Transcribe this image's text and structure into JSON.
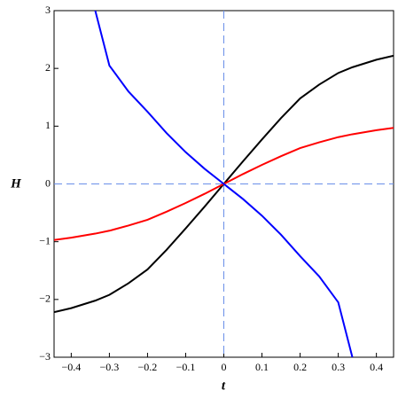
{
  "chart_data": {
    "type": "line",
    "x_label": "t",
    "y_label": "H",
    "x": [
      -0.445,
      -0.4,
      -0.337,
      -0.3,
      -0.25,
      -0.2,
      -0.15,
      -0.1,
      -0.05,
      0,
      0.05,
      0.1,
      0.15,
      0.2,
      0.25,
      0.3,
      0.337,
      0.4,
      0.445
    ],
    "series": [
      {
        "color": "#000000",
        "values": [
          -2.22,
          -2.15,
          -2.02,
          -1.92,
          -1.72,
          -1.48,
          -1.14,
          -0.77,
          -0.39,
          0,
          0.39,
          0.77,
          1.14,
          1.48,
          1.72,
          1.92,
          2.02,
          2.15,
          2.22
        ]
      },
      {
        "color": "#ff0000",
        "values": [
          -0.97,
          -0.93,
          -0.86,
          -0.81,
          -0.72,
          -0.62,
          -0.48,
          -0.33,
          -0.17,
          0,
          0.17,
          0.33,
          0.48,
          0.62,
          0.72,
          0.81,
          0.86,
          0.93,
          0.97
        ]
      },
      {
        "color": "#0000ff",
        "values": [
          null,
          null,
          3,
          2.05,
          1.6,
          1.25,
          0.88,
          0.55,
          0.26,
          0,
          -0.26,
          -0.55,
          -0.88,
          -1.25,
          -1.6,
          -2.05,
          -3,
          null,
          null
        ]
      }
    ],
    "xlim": [
      -0.445,
      0.445
    ],
    "ylim": [
      -3,
      3
    ],
    "xticks": [
      {
        "value": -0.4,
        "label": "−0.4"
      },
      {
        "value": -0.3,
        "label": "−0.3"
      },
      {
        "value": -0.2,
        "label": "−0.2"
      },
      {
        "value": -0.1,
        "label": "−0.1"
      },
      0,
      0.1,
      0.2,
      0.3,
      0.4
    ],
    "yticks": [
      {
        "value": -3,
        "label": "−3"
      },
      {
        "value": -2,
        "label": "−2"
      },
      {
        "value": -1,
        "label": "−1"
      },
      0,
      1,
      2,
      3
    ],
    "zero_lines_color": "#6a8fe8"
  }
}
